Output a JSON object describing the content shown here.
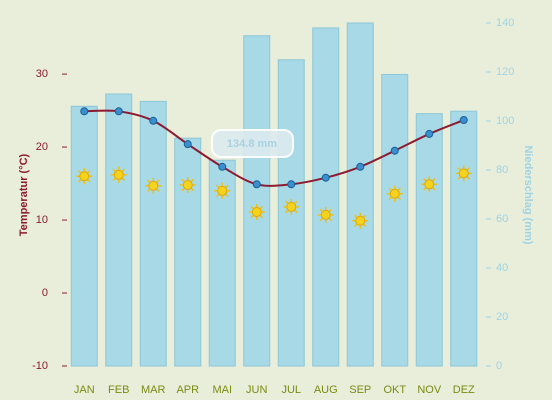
{
  "chart_data": {
    "type": "bar-line",
    "categories": [
      "JAN",
      "FEB",
      "MAR",
      "APR",
      "MAI",
      "JUN",
      "JUL",
      "AUG",
      "SEP",
      "OKT",
      "NOV",
      "DEZ"
    ],
    "ylabel": "Temperatur (°C)",
    "y2label": "Niederschlag (mm)",
    "ylim": [
      -10,
      37
    ],
    "yticks": [
      -10,
      0,
      10,
      20,
      30
    ],
    "y2lim": [
      0,
      140
    ],
    "y2ticks": [
      0,
      20,
      40,
      60,
      80,
      100,
      120,
      140
    ],
    "series": [
      {
        "name": "Niederschlag (mm)",
        "type": "bar",
        "axis": "y2",
        "color": "#a7d9e6",
        "values": [
          106,
          111,
          108,
          93,
          84,
          134.8,
          125,
          138,
          140,
          119,
          103,
          104
        ]
      },
      {
        "name": "Temperatur (°C)",
        "type": "line",
        "color": "#8c1a30",
        "values": [
          24.9,
          24.9,
          23.6,
          20.4,
          17.3,
          14.9,
          14.9,
          15.8,
          17.3,
          19.5,
          21.8,
          23.7
        ]
      },
      {
        "type": "sun",
        "color": "#f5d21c",
        "values": [
          16.0,
          16.2,
          14.7,
          14.8,
          14.0,
          11.1,
          11.8,
          10.7,
          9.9,
          13.6,
          14.9,
          16.4
        ]
      }
    ],
    "tooltip": "134.8 mm"
  }
}
